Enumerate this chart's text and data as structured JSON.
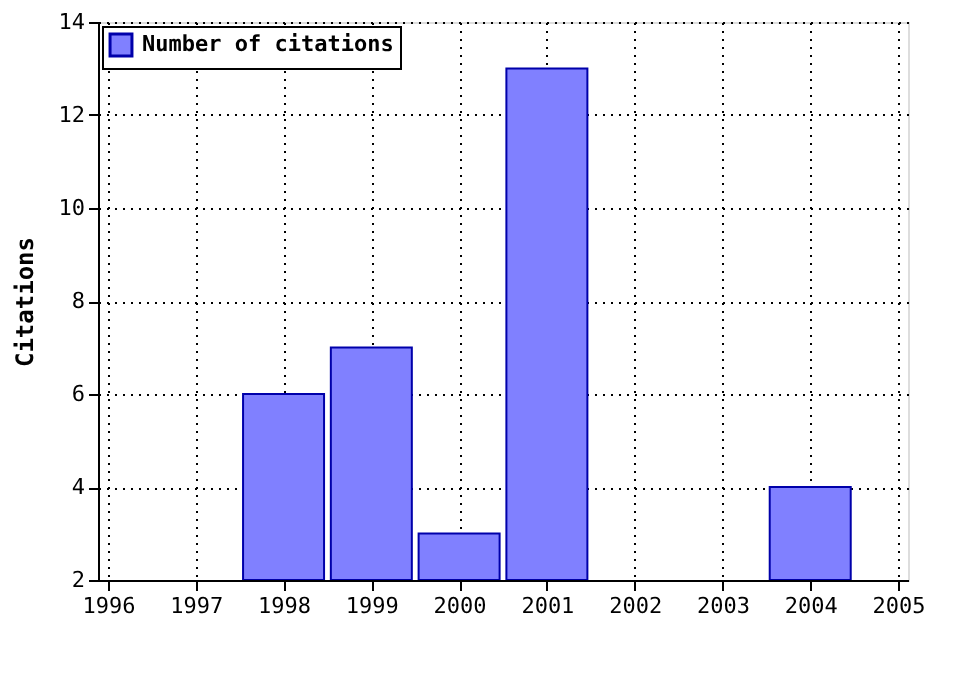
{
  "chart_data": {
    "type": "bar",
    "ylabel": "Citations",
    "x": [
      1998,
      1999,
      2000,
      2001,
      2004
    ],
    "series": [
      {
        "name": "Number of citations",
        "color": "#8080ff",
        "values": [
          6,
          7,
          3,
          13,
          4
        ]
      }
    ],
    "xlim": [
      1996,
      2005
    ],
    "xticks": [
      1996,
      1997,
      1998,
      1999,
      2000,
      2001,
      2002,
      2003,
      2004,
      2005
    ],
    "ylim": [
      2,
      14
    ],
    "yticks": [
      2,
      4,
      6,
      8,
      10,
      12,
      14
    ],
    "grid": true,
    "legend": "top left"
  }
}
